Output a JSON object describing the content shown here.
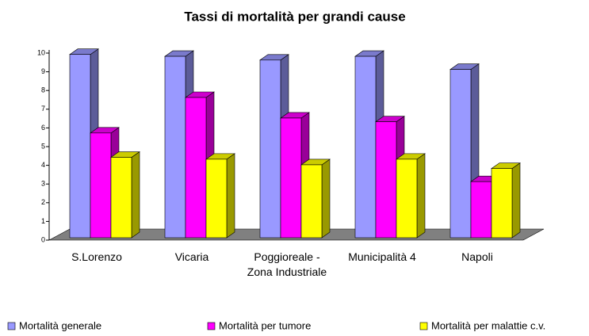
{
  "chart_data": {
    "type": "bar3d",
    "title": "Tassi di mortalità per grandi cause",
    "categories": [
      "S.Lorenzo",
      "Vicaria",
      "Poggioreale - Zona Industriale",
      "Municipalità 4",
      "Napoli"
    ],
    "series": [
      {
        "name": "Mortalità generale",
        "color": "#9999ff",
        "values": [
          9.8,
          9.7,
          9.5,
          9.7,
          9.0
        ]
      },
      {
        "name": "Mortalità per tumore",
        "color": "#ff00ff",
        "values": [
          5.6,
          7.5,
          6.4,
          6.2,
          3.0
        ]
      },
      {
        "name": "Mortalità per malattie c.v.",
        "color": "#ffff00",
        "values": [
          4.3,
          4.2,
          3.9,
          4.2,
          3.7
        ]
      }
    ],
    "ylim": [
      0,
      10
    ],
    "yticks": [
      0,
      1,
      2,
      3,
      4,
      5,
      6,
      7,
      8,
      9,
      10
    ]
  }
}
